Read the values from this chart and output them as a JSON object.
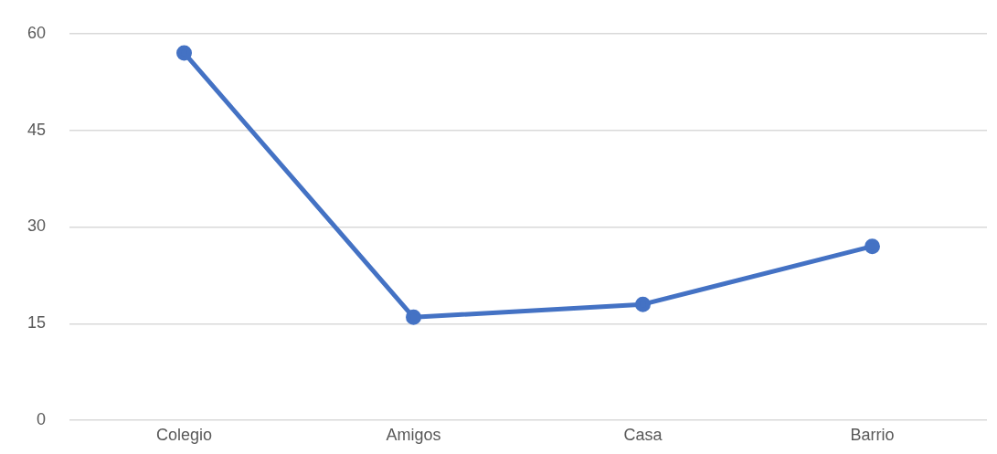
{
  "chart_data": {
    "type": "line",
    "categories": [
      "Colegio",
      "Amigos",
      "Casa",
      "Barrio"
    ],
    "series": [
      {
        "color": "#4472c4",
        "values": [
          57,
          16,
          18,
          27
        ]
      }
    ],
    "ylim": [
      0,
      60
    ],
    "yticks": [
      0,
      15,
      30,
      45,
      60
    ],
    "grid": "y",
    "legend": false,
    "marker": "circle",
    "line_style": "solid"
  }
}
